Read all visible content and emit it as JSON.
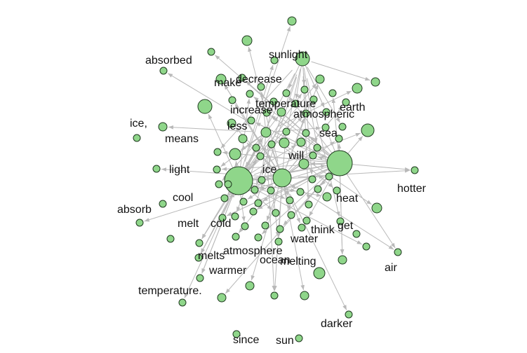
{
  "graph": {
    "labels": {
      "sunlight": "sunlight",
      "absorbed": "absorbed",
      "make": "make",
      "decrease": "decrease",
      "temperature": "temperature",
      "increase": "increase",
      "earth": "earth",
      "atmospheric": "atmospheric",
      "ice_comma": "ice,",
      "less": "less",
      "sea": "sea",
      "means": "means",
      "will": "will",
      "light": "light",
      "ice": "ice",
      "hotter": "hotter",
      "cool": "cool",
      "heat": "heat",
      "absorb": "absorb",
      "melt": "melt",
      "cold": "cold",
      "get": "get",
      "think": "think",
      "water": "water",
      "atmosphere": "atmosphere",
      "melts": "melts",
      "ocean": "ocean",
      "melting": "melting",
      "air": "air",
      "warmer": "warmer",
      "temperature_period": "temperature.",
      "darker": "darker",
      "since": "since",
      "sun": "sun"
    },
    "colors": {
      "node_fill": "#8fd68a",
      "node_stroke": "#1f3a1f",
      "edge": "#b9b9b9"
    }
  }
}
